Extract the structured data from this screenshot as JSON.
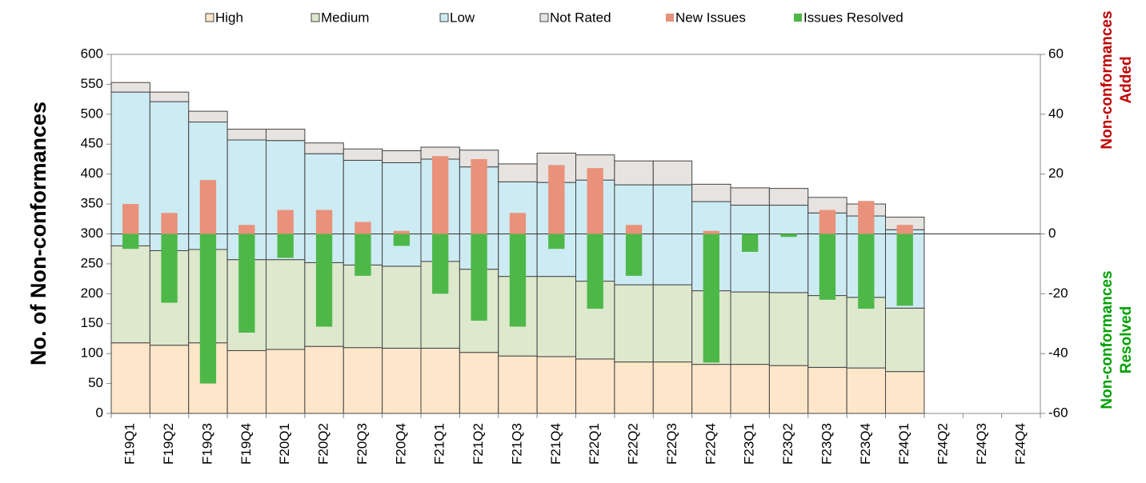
{
  "chart_data": {
    "type": "bar",
    "stacked": true,
    "categories": [
      "F19Q1",
      "F19Q2",
      "F19Q3",
      "F19Q4",
      "F20Q1",
      "F20Q2",
      "F20Q3",
      "F20Q4",
      "F21Q1",
      "F21Q2",
      "F21Q3",
      "F21Q4",
      "F22Q1",
      "F22Q2",
      "F22Q3",
      "F22Q4",
      "F23Q1",
      "F23Q2",
      "F23Q3",
      "F23Q4",
      "F24Q1",
      "F24Q2",
      "F24Q3",
      "F24Q4"
    ],
    "series": [
      {
        "name": "High",
        "color": "#fde6c9",
        "values": [
          118,
          114,
          118,
          105,
          107,
          112,
          110,
          109,
          109,
          102,
          96,
          95,
          91,
          86,
          86,
          82,
          82,
          80,
          77,
          76,
          70,
          null,
          null,
          null
        ]
      },
      {
        "name": "Medium",
        "color": "#dde8cd",
        "values": [
          162,
          158,
          156,
          152,
          150,
          140,
          138,
          137,
          145,
          139,
          133,
          134,
          130,
          129,
          129,
          123,
          121,
          122,
          120,
          118,
          106,
          null,
          null,
          null
        ]
      },
      {
        "name": "Low",
        "color": "#cdebf3",
        "values": [
          257,
          249,
          213,
          200,
          199,
          182,
          175,
          173,
          171,
          171,
          158,
          157,
          169,
          167,
          167,
          149,
          145,
          146,
          138,
          136,
          131,
          null,
          null,
          null
        ]
      },
      {
        "name": "Not Rated",
        "color": "#e6e3e0",
        "values": [
          16,
          16,
          18,
          18,
          19,
          18,
          19,
          20,
          20,
          28,
          30,
          49,
          42,
          40,
          40,
          29,
          29,
          28,
          26,
          20,
          21,
          null,
          null,
          null
        ]
      },
      {
        "name": "New Issues",
        "color": "#e9917a",
        "axis": "y2",
        "values": [
          10,
          7,
          18,
          3,
          8,
          8,
          4,
          1,
          26,
          25,
          7,
          23,
          22,
          3,
          0,
          1,
          0,
          0,
          8,
          11,
          3,
          null,
          null,
          null
        ]
      },
      {
        "name": "Issues Resolved",
        "color": "#4db848",
        "axis": "y2",
        "values": [
          -5,
          -23,
          -50,
          -33,
          -8,
          -31,
          -14,
          -4,
          -20,
          -29,
          -31,
          -5,
          -25,
          -14,
          0,
          -43,
          -6,
          -1,
          -22,
          -25,
          -24,
          null,
          null,
          null
        ]
      }
    ],
    "ylabel": "No. of Non-conformances",
    "y2label_added": [
      "Non-conformances",
      "Added"
    ],
    "y2label_resolved": [
      "Non-conformances",
      "Resolved"
    ],
    "ylim": [
      0,
      600
    ],
    "yticks": [
      0,
      50,
      100,
      150,
      200,
      250,
      300,
      350,
      400,
      450,
      500,
      550,
      600
    ],
    "y2lim": [
      -60,
      60
    ],
    "y2ticks": [
      -60,
      -40,
      -20,
      0,
      20,
      40,
      60
    ]
  }
}
